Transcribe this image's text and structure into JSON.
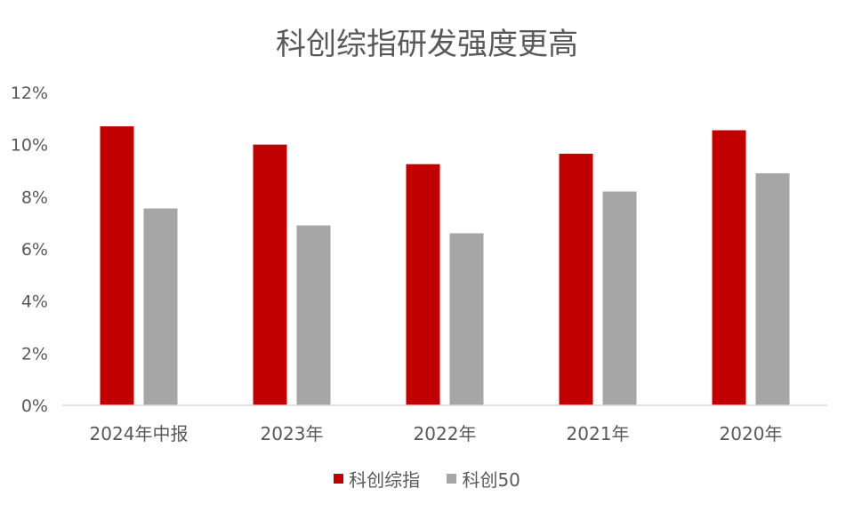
{
  "chart_data": {
    "type": "bar",
    "title": "科创综指研发强度更高",
    "categories": [
      "2024年中报",
      "2023年",
      "2022年",
      "2021年",
      "2020年"
    ],
    "series": [
      {
        "name": "科创综指",
        "color": "#C00000",
        "values": [
          10.7,
          10.0,
          9.25,
          9.65,
          10.55
        ]
      },
      {
        "name": "科创50",
        "color": "#A6A6A6",
        "values": [
          7.55,
          6.9,
          6.6,
          8.2,
          8.9
        ]
      }
    ],
    "ylim": [
      0,
      12
    ],
    "yticks": [
      0,
      2,
      4,
      6,
      8,
      10,
      12
    ],
    "ytick_suffix": "%",
    "grid": false,
    "legend_position": "bottom"
  }
}
